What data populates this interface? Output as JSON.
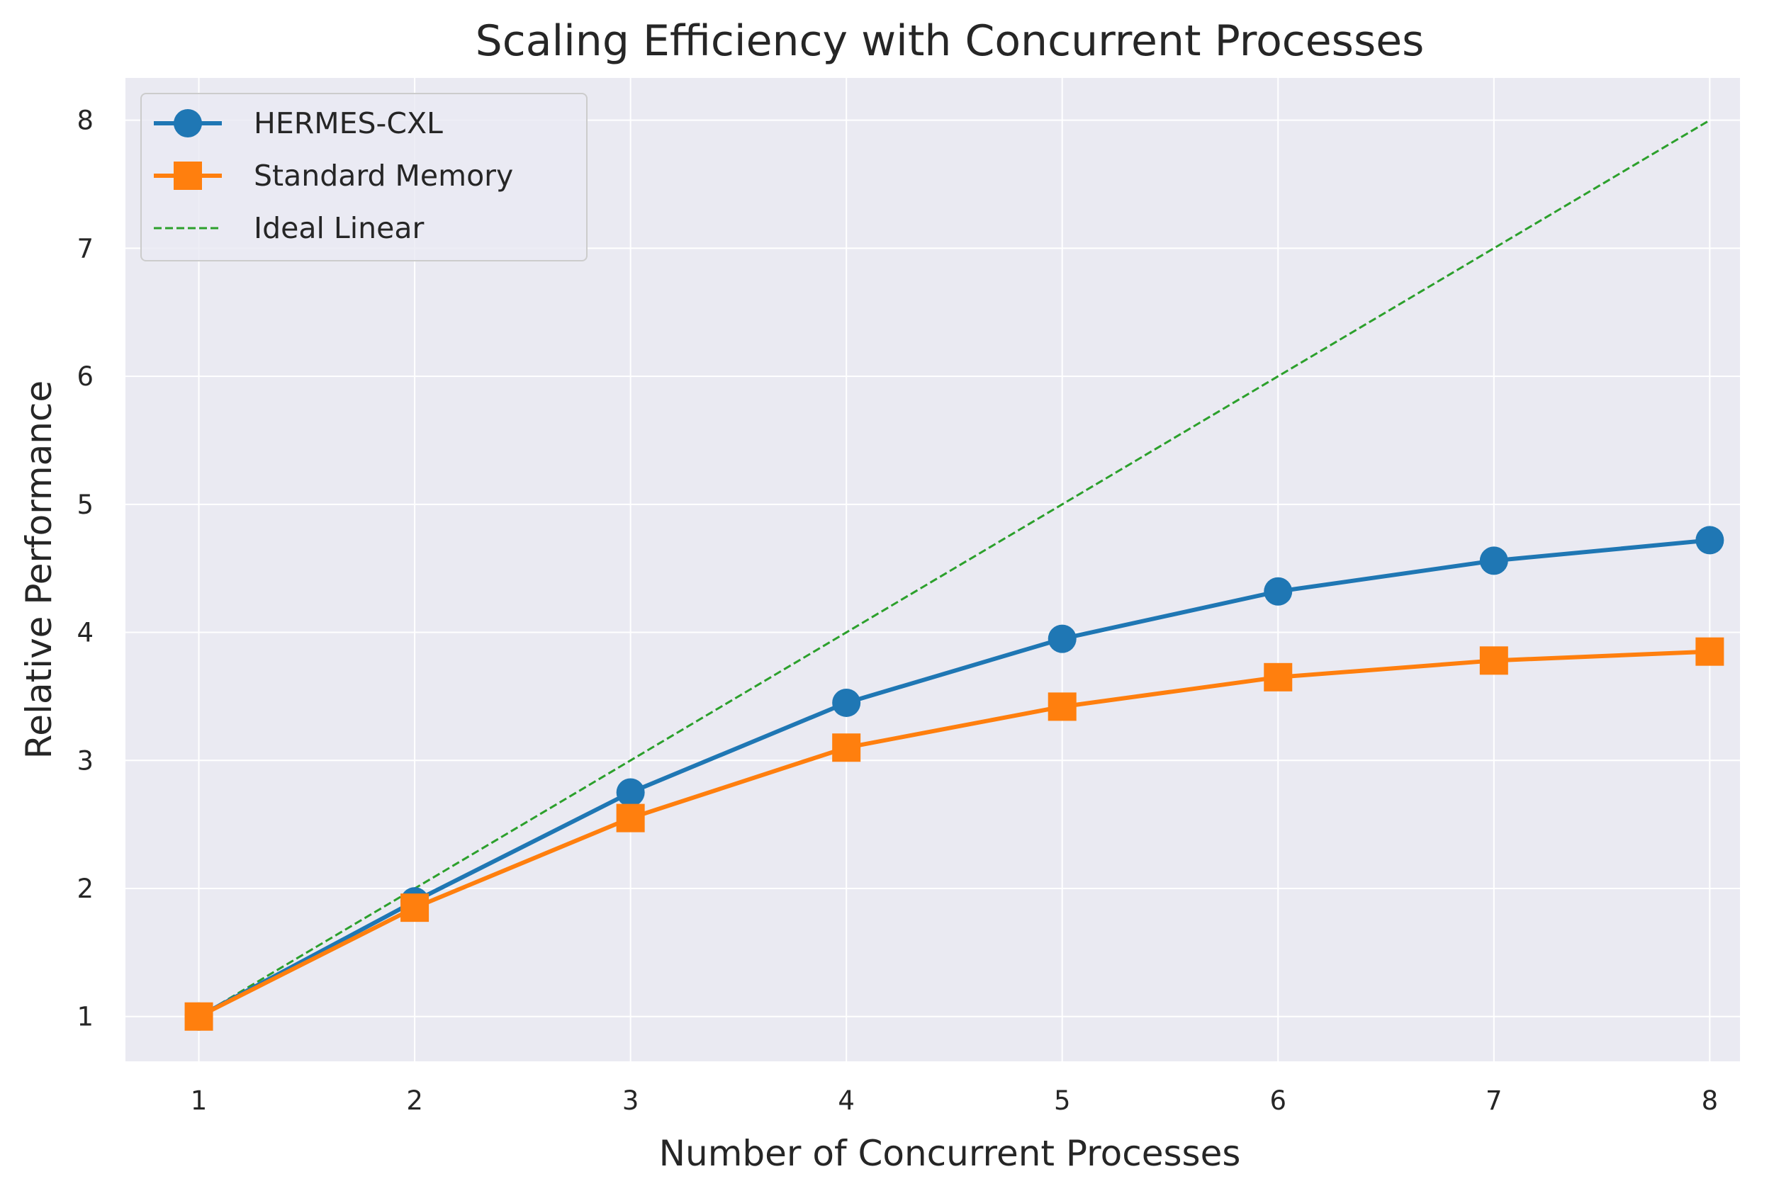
{
  "chart_data": {
    "type": "line",
    "title": "Scaling Efficiency with Concurrent Processes",
    "xlabel": "Number of Concurrent Processes",
    "ylabel": "Relative Performance",
    "x": [
      1,
      2,
      3,
      4,
      5,
      6,
      7,
      8
    ],
    "xlim": [
      0.66,
      8.14
    ],
    "ylim": [
      0.65,
      8.33
    ],
    "xticks": [
      1,
      2,
      3,
      4,
      5,
      6,
      7,
      8
    ],
    "yticks": [
      1,
      2,
      3,
      4,
      5,
      6,
      7,
      8
    ],
    "grid": true,
    "legend_position": "upper-left",
    "series": [
      {
        "name": "HERMES-CXL",
        "values": [
          1.0,
          1.9,
          2.75,
          3.45,
          3.95,
          4.32,
          4.56,
          4.72
        ],
        "color": "#1f77b4",
        "marker": "circle",
        "style": "solid"
      },
      {
        "name": "Standard Memory",
        "values": [
          1.0,
          1.85,
          2.55,
          3.1,
          3.42,
          3.65,
          3.78,
          3.85
        ],
        "color": "#ff7f0e",
        "marker": "square",
        "style": "solid"
      },
      {
        "name": "Ideal Linear",
        "values": [
          1,
          2,
          3,
          4,
          5,
          6,
          7,
          8
        ],
        "color": "#2ca02c",
        "marker": "none",
        "style": "dashed"
      }
    ]
  }
}
